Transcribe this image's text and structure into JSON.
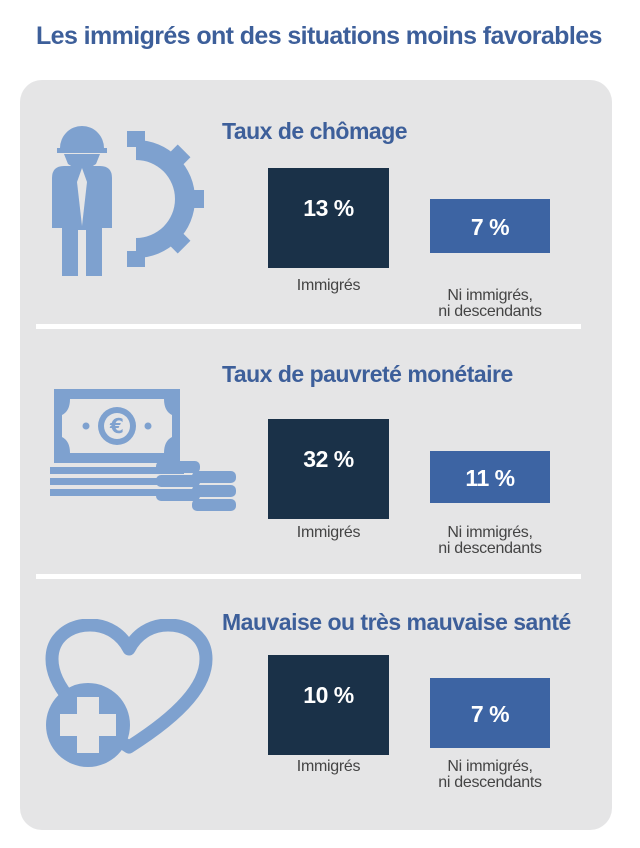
{
  "title": "Les immigrés ont des situations moins favorables",
  "colors": {
    "title": "#3d5f9a",
    "panel": "#e5e5e6",
    "icon": "#7ea1cf",
    "immigres_bar": "#1a3148",
    "non_immigres_bar": "#3d64a3"
  },
  "chart_data": [
    {
      "type": "bar",
      "title": "Taux de chômage",
      "icon": "worker-gear-icon",
      "categories": [
        "Immigrés",
        "Ni immigrés, ni descendants"
      ],
      "category_lines": [
        [
          "Immigrés"
        ],
        [
          "Ni immigrés,",
          "ni descendants"
        ]
      ],
      "values": [
        13,
        7
      ],
      "labels": [
        "13 %",
        "7 %"
      ],
      "unit": "%"
    },
    {
      "type": "bar",
      "title": "Taux de pauvreté monétaire",
      "icon": "euro-banknote-coins-icon",
      "categories": [
        "Immigrés",
        "Ni immigrés, ni descendants"
      ],
      "category_lines": [
        [
          "Immigrés"
        ],
        [
          "Ni immigrés,",
          "ni descendants"
        ]
      ],
      "values": [
        32,
        11
      ],
      "labels": [
        "32 %",
        "11 %"
      ],
      "unit": "%"
    },
    {
      "type": "bar",
      "title": "Mauvaise ou très mauvaise santé",
      "icon": "heart-medical-cross-icon",
      "categories": [
        "Immigrés",
        "Ni immigrés, ni descendants"
      ],
      "category_lines": [
        [
          "Immigrés"
        ],
        [
          "Ni immigrés,",
          "ni descendants"
        ]
      ],
      "values": [
        10,
        7
      ],
      "labels": [
        "10 %",
        "7 %"
      ],
      "unit": "%"
    }
  ]
}
